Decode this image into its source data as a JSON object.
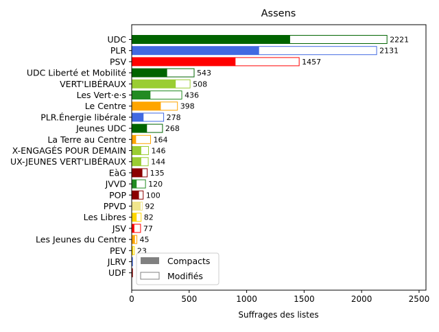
{
  "chart_data": {
    "type": "bar",
    "orientation": "horizontal",
    "stacked": true,
    "title": "Assens",
    "xlabel": "Suffrages des listes",
    "ylabel": "",
    "xlim": [
      0,
      2560
    ],
    "xticks": [
      0,
      500,
      1000,
      1500,
      2000,
      2500
    ],
    "grid": false,
    "legend_position": "lower-left",
    "categories": [
      "UDC",
      "PLR",
      "PSV",
      "UDC Liberté et Mobilité",
      "VERT'LIBÉRAUX",
      "Les Vert·e·s",
      "Le Centre",
      "PLR.Énergie libérale",
      "Jeunes UDC",
      "La Terre au Centre",
      "X-ENGAGÉS POUR DEMAIN",
      "UX-JEUNES VERT'LIBÉRAUX",
      "EàG",
      "JVVD",
      "POP",
      "PPVD",
      "Les Libres",
      "JSV",
      "Les Jeunes du Centre",
      "PEV",
      "JLRV",
      "UDF"
    ],
    "colors": [
      "#006400",
      "#4169e1",
      "#ff0000",
      "#006400",
      "#9acd32",
      "#228b22",
      "#ffa500",
      "#4169e1",
      "#006400",
      "#ffa500",
      "#9acd32",
      "#9acd32",
      "#8b0000",
      "#228b22",
      "#8b0000",
      "#f0e68c",
      "#ffd700",
      "#ff0000",
      "#ffa500",
      "#ffd700",
      "#4169e1",
      "#8b0000"
    ],
    "series": [
      {
        "name": "Compacts",
        "legend_color": "#808080",
        "values": [
          1375,
          1105,
          900,
          305,
          380,
          160,
          250,
          100,
          130,
          35,
          80,
          80,
          90,
          40,
          60,
          75,
          40,
          20,
          25,
          10,
          10,
          10
        ]
      },
      {
        "name": "Modifiés",
        "legend_color": "#808080",
        "values": [
          846,
          1026,
          557,
          238,
          128,
          276,
          148,
          178,
          138,
          129,
          66,
          64,
          45,
          80,
          40,
          17,
          42,
          57,
          20,
          13,
          0,
          0
        ]
      }
    ],
    "totals": [
      "2221",
      "2131",
      "1457",
      "543",
      "508",
      "436",
      "398",
      "278",
      "268",
      "164",
      "146",
      "144",
      "135",
      "120",
      "100",
      "92",
      "82",
      "77",
      "45",
      "23",
      "",
      ""
    ]
  }
}
